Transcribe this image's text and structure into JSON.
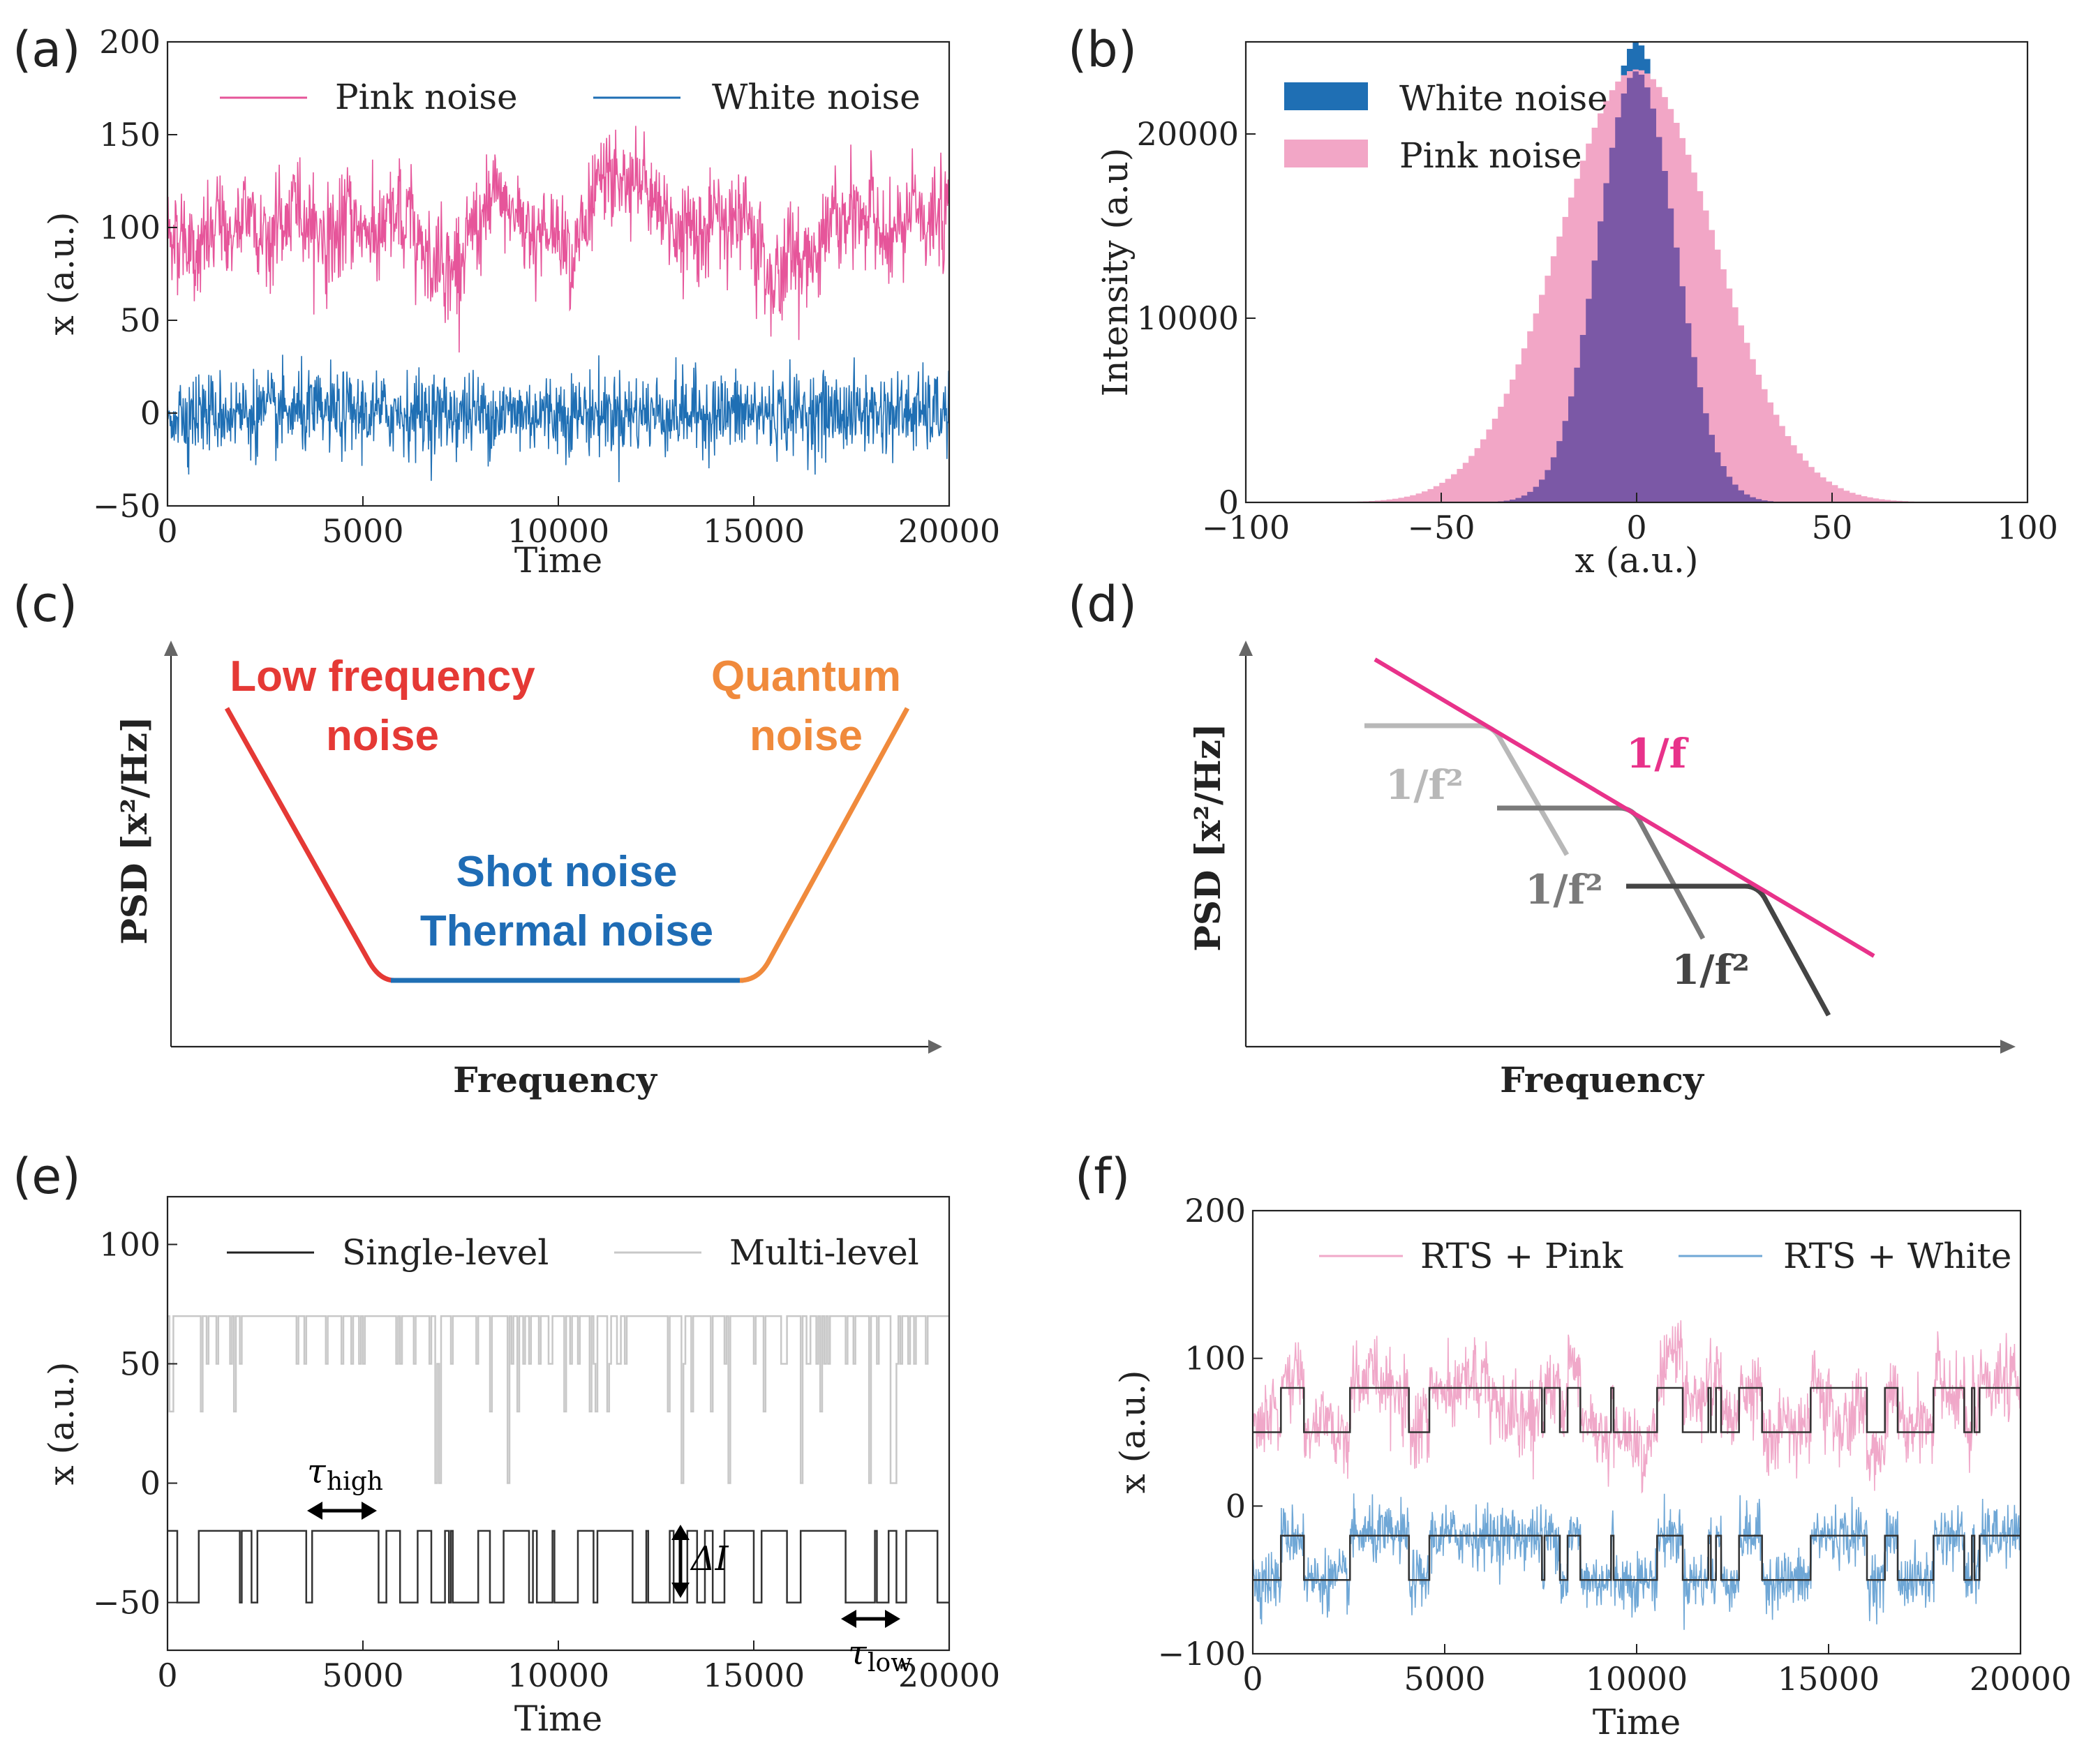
{
  "colors": {
    "pink": "#e6559a",
    "white_blue": "#1f6fb4",
    "pink_hist": "#f2a6c6",
    "overlap": "#7b58a6",
    "red": "#e53935",
    "orange": "#f08a3c",
    "blue_text": "#1e6cb5",
    "magenta": "#e8328a",
    "gray_light": "#b8b8b8",
    "gray_mid": "#7a7a7a",
    "gray_dark": "#444444",
    "light_pink": "#f0a8c9",
    "light_blue": "#6fa7d6"
  },
  "chart_data": [
    {
      "panel": "(a)",
      "type": "line",
      "xlabel": "Time",
      "ylabel": "x (a.u.)",
      "xlim": [
        0,
        20000
      ],
      "ylim": [
        -50,
        200
      ],
      "xticks": [
        "0",
        "5000",
        "10000",
        "15000",
        "20000"
      ],
      "yticks": [
        "−50",
        "0",
        "50",
        "100",
        "150",
        "200"
      ],
      "legend": "top",
      "series": [
        {
          "name": "Pink noise",
          "mean": 100,
          "spread": [
            50,
            140
          ]
        },
        {
          "name": "White noise",
          "mean": 0,
          "spread": [
            -30,
            30
          ]
        }
      ]
    },
    {
      "panel": "(b)",
      "type": "bar",
      "xlabel": "x (a.u.)",
      "ylabel": "Intensity (a.u)",
      "xlim": [
        -100,
        100
      ],
      "ylim": [
        0,
        25000
      ],
      "xticks": [
        "−100",
        "−50",
        "0",
        "50",
        "100"
      ],
      "yticks": [
        "0",
        "10000",
        "20000"
      ],
      "legend": "top-left",
      "series": [
        {
          "name": "White noise",
          "peak": 25000,
          "sigma": 10
        },
        {
          "name": "Pink noise",
          "peak": 23500,
          "sigma": 20
        }
      ]
    },
    {
      "panel": "(c)",
      "type": "line",
      "xlabel": "Frequency",
      "ylabel": "PSD [x²/Hz]",
      "labels": {
        "low": [
          "Low frequency",
          "noise"
        ],
        "quantum": [
          "Quantum",
          "noise"
        ],
        "flat": [
          "Shot noise",
          "Thermal noise"
        ]
      }
    },
    {
      "panel": "(d)",
      "type": "line",
      "xlabel": "Frequency",
      "ylabel": "PSD [x²/Hz]",
      "labels": {
        "one_over_f": "1/f",
        "lorentz": [
          "1/f²",
          "1/f²",
          "1/f²"
        ]
      }
    },
    {
      "panel": "(e)",
      "type": "line",
      "xlabel": "Time",
      "ylabel": "x (a.u.)",
      "xlim": [
        0,
        20000
      ],
      "ylim": [
        -70,
        120
      ],
      "xticks": [
        "0",
        "5000",
        "10000",
        "15000",
        "20000"
      ],
      "yticks": [
        "−50",
        "0",
        "50",
        "100"
      ],
      "legend": "top",
      "series": [
        {
          "name": "Single-level",
          "levels": [
            -20,
            -50
          ]
        },
        {
          "name": "Multi-level",
          "levels": [
            70,
            50,
            30,
            0
          ]
        }
      ],
      "annotations": {
        "tau_high": "τ",
        "tau_high_sub": "high",
        "delta_i": "ΔI",
        "tau_low": "τ",
        "tau_low_sub": "low"
      }
    },
    {
      "panel": "(f)",
      "type": "line",
      "xlabel": "Time",
      "ylabel": "x (a.u.)",
      "xlim": [
        0,
        20000
      ],
      "ylim": [
        -100,
        200
      ],
      "xticks": [
        "0",
        "5000",
        "10000",
        "15000",
        "20000"
      ],
      "yticks": [
        "−100",
        "0",
        "100",
        "200"
      ],
      "legend": "top",
      "series": [
        {
          "name": "RTS + Pink",
          "levels": [
            80,
            50
          ]
        },
        {
          "name": "RTS + White",
          "levels": [
            -20,
            -50
          ]
        }
      ]
    }
  ],
  "panel_tags": [
    "(a)",
    "(b)",
    "(c)",
    "(d)",
    "(e)",
    "(f)"
  ]
}
